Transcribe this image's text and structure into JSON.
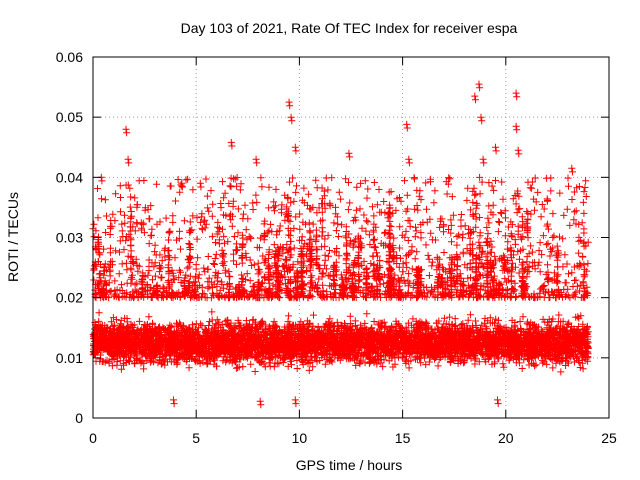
{
  "chart_data": {
    "type": "scatter",
    "title": "Day 103 of 2021, Rate Of TEC Index for receiver espa",
    "xlabel": "GPS time / hours",
    "ylabel": "ROTI / TECUs",
    "xlim": [
      0,
      25
    ],
    "ylim": [
      0,
      0.06
    ],
    "xticks": [
      0,
      5,
      10,
      15,
      20,
      25
    ],
    "xtick_labels": [
      "0",
      "5",
      "10",
      "15",
      "20",
      "25"
    ],
    "yticks": [
      0,
      0.01,
      0.02,
      0.03,
      0.04,
      0.05,
      0.06
    ],
    "ytick_labels": [
      "0",
      "0.01",
      "0.02",
      "0.03",
      "0.04",
      "0.05",
      "0.06"
    ],
    "grid": true,
    "marker": "+",
    "color": "#ff0000",
    "series": [
      {
        "name": "ROTI",
        "x_range": [
          0,
          24
        ],
        "bulk_range": [
          0.005,
          0.02
        ],
        "notable_points": [
          {
            "x": 0.4,
            "y": 0.04
          },
          {
            "x": 1.6,
            "y": 0.048
          },
          {
            "x": 1.7,
            "y": 0.043
          },
          {
            "x": 4.3,
            "y": 0.039
          },
          {
            "x": 5.2,
            "y": 0.039
          },
          {
            "x": 6.7,
            "y": 0.0458
          },
          {
            "x": 7.9,
            "y": 0.043
          },
          {
            "x": 9.5,
            "y": 0.0525
          },
          {
            "x": 9.6,
            "y": 0.05
          },
          {
            "x": 9.8,
            "y": 0.045
          },
          {
            "x": 12.4,
            "y": 0.044
          },
          {
            "x": 15.2,
            "y": 0.0488
          },
          {
            "x": 15.3,
            "y": 0.043
          },
          {
            "x": 18.5,
            "y": 0.0535
          },
          {
            "x": 18.7,
            "y": 0.0555
          },
          {
            "x": 18.8,
            "y": 0.05
          },
          {
            "x": 18.9,
            "y": 0.043
          },
          {
            "x": 19.5,
            "y": 0.045
          },
          {
            "x": 20.5,
            "y": 0.054
          },
          {
            "x": 20.5,
            "y": 0.0485
          },
          {
            "x": 20.6,
            "y": 0.0445
          },
          {
            "x": 23.2,
            "y": 0.0415
          },
          {
            "x": 3.9,
            "y": 0.003
          },
          {
            "x": 8.1,
            "y": 0.0028
          },
          {
            "x": 9.8,
            "y": 0.003
          },
          {
            "x": 19.6,
            "y": 0.003
          }
        ]
      }
    ]
  }
}
